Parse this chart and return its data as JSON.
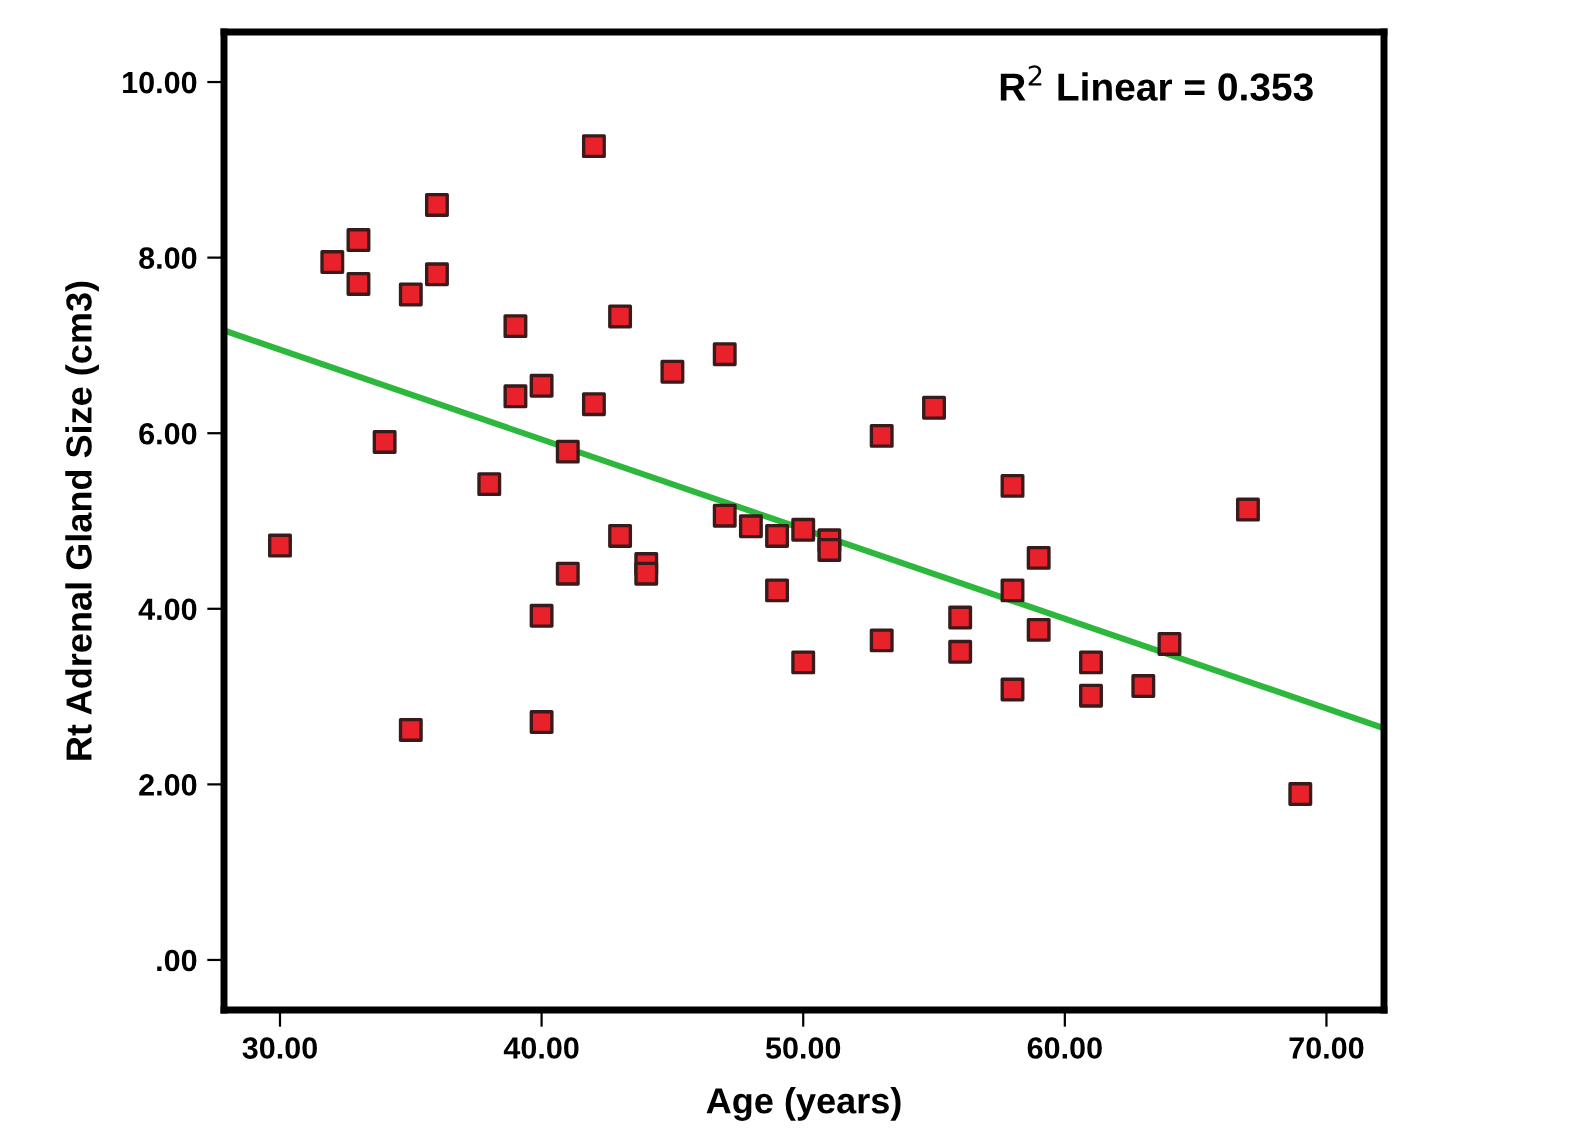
{
  "chart_data": {
    "type": "scatter",
    "xlabel": "Age (years)",
    "ylabel": "Rt Adrenal Gland Size (cm3)",
    "annotations": [
      "R$^{2}$ Linear = 0.353"
    ],
    "xlim": [
      27.86,
      72.2
    ],
    "ylim": [
      -0.57,
      10.57
    ],
    "xticks": [
      {
        "value": 30,
        "label": "30.00"
      },
      {
        "value": 40,
        "label": "40.00"
      },
      {
        "value": 50,
        "label": "50.00"
      },
      {
        "value": 60,
        "label": "60.00"
      },
      {
        "value": 70,
        "label": "70.00"
      }
    ],
    "yticks": [
      {
        "value": 0,
        "label": ".00"
      },
      {
        "value": 2,
        "label": "2.00"
      },
      {
        "value": 4,
        "label": "4.00"
      },
      {
        "value": 6,
        "label": "6.00"
      },
      {
        "value": 8,
        "label": "8.00"
      },
      {
        "value": 10,
        "label": "10.00"
      }
    ],
    "grid": false,
    "legend": false,
    "marker": "square",
    "series": [
      {
        "color": "#e8212b",
        "x": [
          30,
          32,
          33,
          33,
          34,
          35,
          35,
          36,
          36,
          38,
          39,
          39,
          40,
          40,
          40,
          41,
          41,
          42,
          42,
          43,
          43,
          44,
          44,
          45,
          47,
          47,
          48,
          49,
          49,
          50,
          50,
          51,
          51,
          53,
          53,
          55,
          56,
          56,
          58,
          58,
          58,
          59,
          59,
          61,
          61,
          63,
          64,
          67,
          69
        ],
        "values": [
          4.72,
          7.95,
          8.2,
          7.7,
          5.9,
          7.58,
          2.62,
          8.6,
          7.81,
          5.42,
          7.22,
          6.42,
          6.54,
          3.92,
          2.71,
          5.79,
          4.4,
          9.27,
          6.33,
          7.33,
          4.83,
          4.51,
          4.4,
          6.7,
          6.9,
          5.06,
          4.94,
          4.83,
          4.21,
          4.9,
          3.39,
          4.78,
          4.67,
          5.97,
          3.64,
          6.29,
          3.9,
          3.51,
          5.4,
          4.21,
          3.08,
          4.58,
          3.76,
          3.39,
          3.01,
          3.12,
          3.6,
          5.13,
          1.89
        ]
      },
      {
        "type": "line",
        "marker": "none",
        "color": "#2db83d",
        "x": [
          27.86,
          72.2
        ],
        "values": [
          7.17,
          2.64
        ]
      }
    ]
  }
}
